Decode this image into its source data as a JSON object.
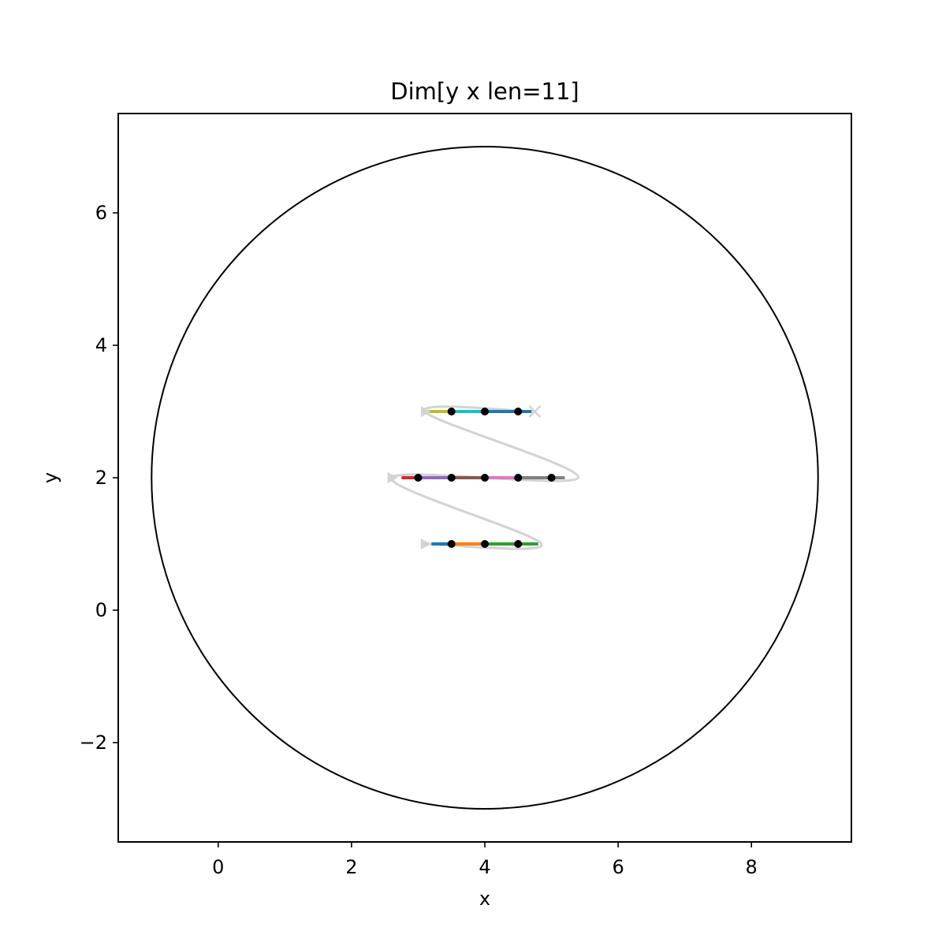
{
  "chart_data": {
    "type": "line",
    "title": "Dim[y x len=11]",
    "xlabel": "x",
    "ylabel": "y",
    "xlim": [
      -1.5,
      9.5
    ],
    "ylim": [
      -3.5,
      7.5
    ],
    "xticks": [
      0,
      2,
      4,
      6,
      8
    ],
    "yticks": [
      -2,
      0,
      2,
      4,
      6
    ],
    "grid": false,
    "circle": {
      "center": [
        4,
        2
      ],
      "radius": 5,
      "color": "#000000"
    },
    "path": {
      "color": "#d3d3d3",
      "start": [
        3.1,
        1.0
      ],
      "end": [
        4.75,
        3.0
      ],
      "points": [
        [
          3.1,
          1.0
        ],
        [
          4.85,
          1.0
        ],
        [
          2.6,
          2.0
        ],
        [
          5.4,
          2.0
        ],
        [
          3.1,
          3.0
        ],
        [
          4.75,
          3.0
        ]
      ]
    },
    "segments": [
      {
        "y": 1,
        "x": [
          3.2,
          3.5
        ],
        "color": "#1f77b4"
      },
      {
        "y": 1,
        "x": [
          3.5,
          4.0
        ],
        "color": "#ff7f0e"
      },
      {
        "y": 1,
        "x": [
          4.0,
          4.5
        ],
        "color": "#2ca02c"
      },
      {
        "y": 1,
        "x": [
          4.5,
          4.8
        ],
        "color": "#2ca02c"
      },
      {
        "y": 2,
        "x": [
          2.75,
          3.0
        ],
        "color": "#d62728"
      },
      {
        "y": 2,
        "x": [
          3.0,
          3.5
        ],
        "color": "#9467bd"
      },
      {
        "y": 2,
        "x": [
          3.5,
          4.0
        ],
        "color": "#8c564b"
      },
      {
        "y": 2,
        "x": [
          4.0,
          4.5
        ],
        "color": "#e377c2"
      },
      {
        "y": 2,
        "x": [
          4.5,
          5.0
        ],
        "color": "#7f7f7f"
      },
      {
        "y": 2,
        "x": [
          5.0,
          5.2
        ],
        "color": "#7f7f7f"
      },
      {
        "y": 3,
        "x": [
          3.15,
          3.5
        ],
        "color": "#bcbd22"
      },
      {
        "y": 3,
        "x": [
          3.5,
          4.0
        ],
        "color": "#17becf"
      },
      {
        "y": 3,
        "x": [
          4.0,
          4.5
        ],
        "color": "#1f77b4"
      },
      {
        "y": 3,
        "x": [
          4.5,
          4.7
        ],
        "color": "#1f77b4"
      }
    ],
    "points": [
      [
        3.5,
        1
      ],
      [
        4.0,
        1
      ],
      [
        4.5,
        1
      ],
      [
        3.0,
        2
      ],
      [
        3.5,
        2
      ],
      [
        4.0,
        2
      ],
      [
        4.5,
        2
      ],
      [
        5.0,
        2
      ],
      [
        3.5,
        3
      ],
      [
        4.0,
        3
      ],
      [
        4.5,
        3
      ]
    ],
    "point_color": "#000000"
  }
}
